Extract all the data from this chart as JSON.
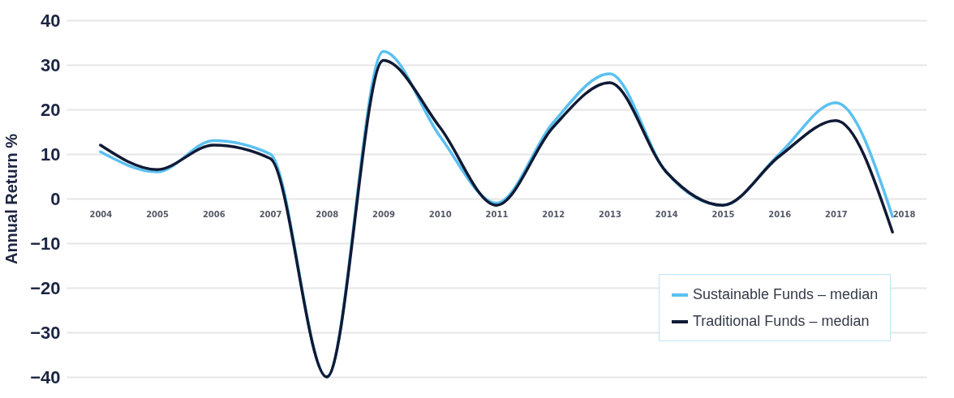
{
  "chart_data": {
    "type": "line",
    "ylabel": "Annual Return %",
    "categories": [
      "2004",
      "2005",
      "2006",
      "2007",
      "2008",
      "2009",
      "2010",
      "2011",
      "2012",
      "2013",
      "2014",
      "2015",
      "2016",
      "2017",
      "2018"
    ],
    "series": [
      {
        "name": "Sustainable Funds – median",
        "color": "#5bc0f0",
        "values": [
          10.5,
          6,
          13,
          10,
          -40,
          33,
          14,
          -1,
          17,
          28,
          6,
          -1.5,
          10,
          21.5,
          -4
        ]
      },
      {
        "name": "Traditional Funds – median",
        "color": "#101a35",
        "values": [
          12,
          6.5,
          12,
          9,
          -40,
          31,
          16,
          -1.5,
          16,
          26,
          6,
          -1.5,
          9.5,
          17.5,
          -7.5
        ]
      }
    ],
    "ylim": [
      -40,
      40
    ],
    "yticks": [
      -40,
      -30,
      -20,
      -10,
      0,
      10,
      20,
      30,
      40
    ],
    "grid": "y",
    "legend": "bottom right"
  }
}
